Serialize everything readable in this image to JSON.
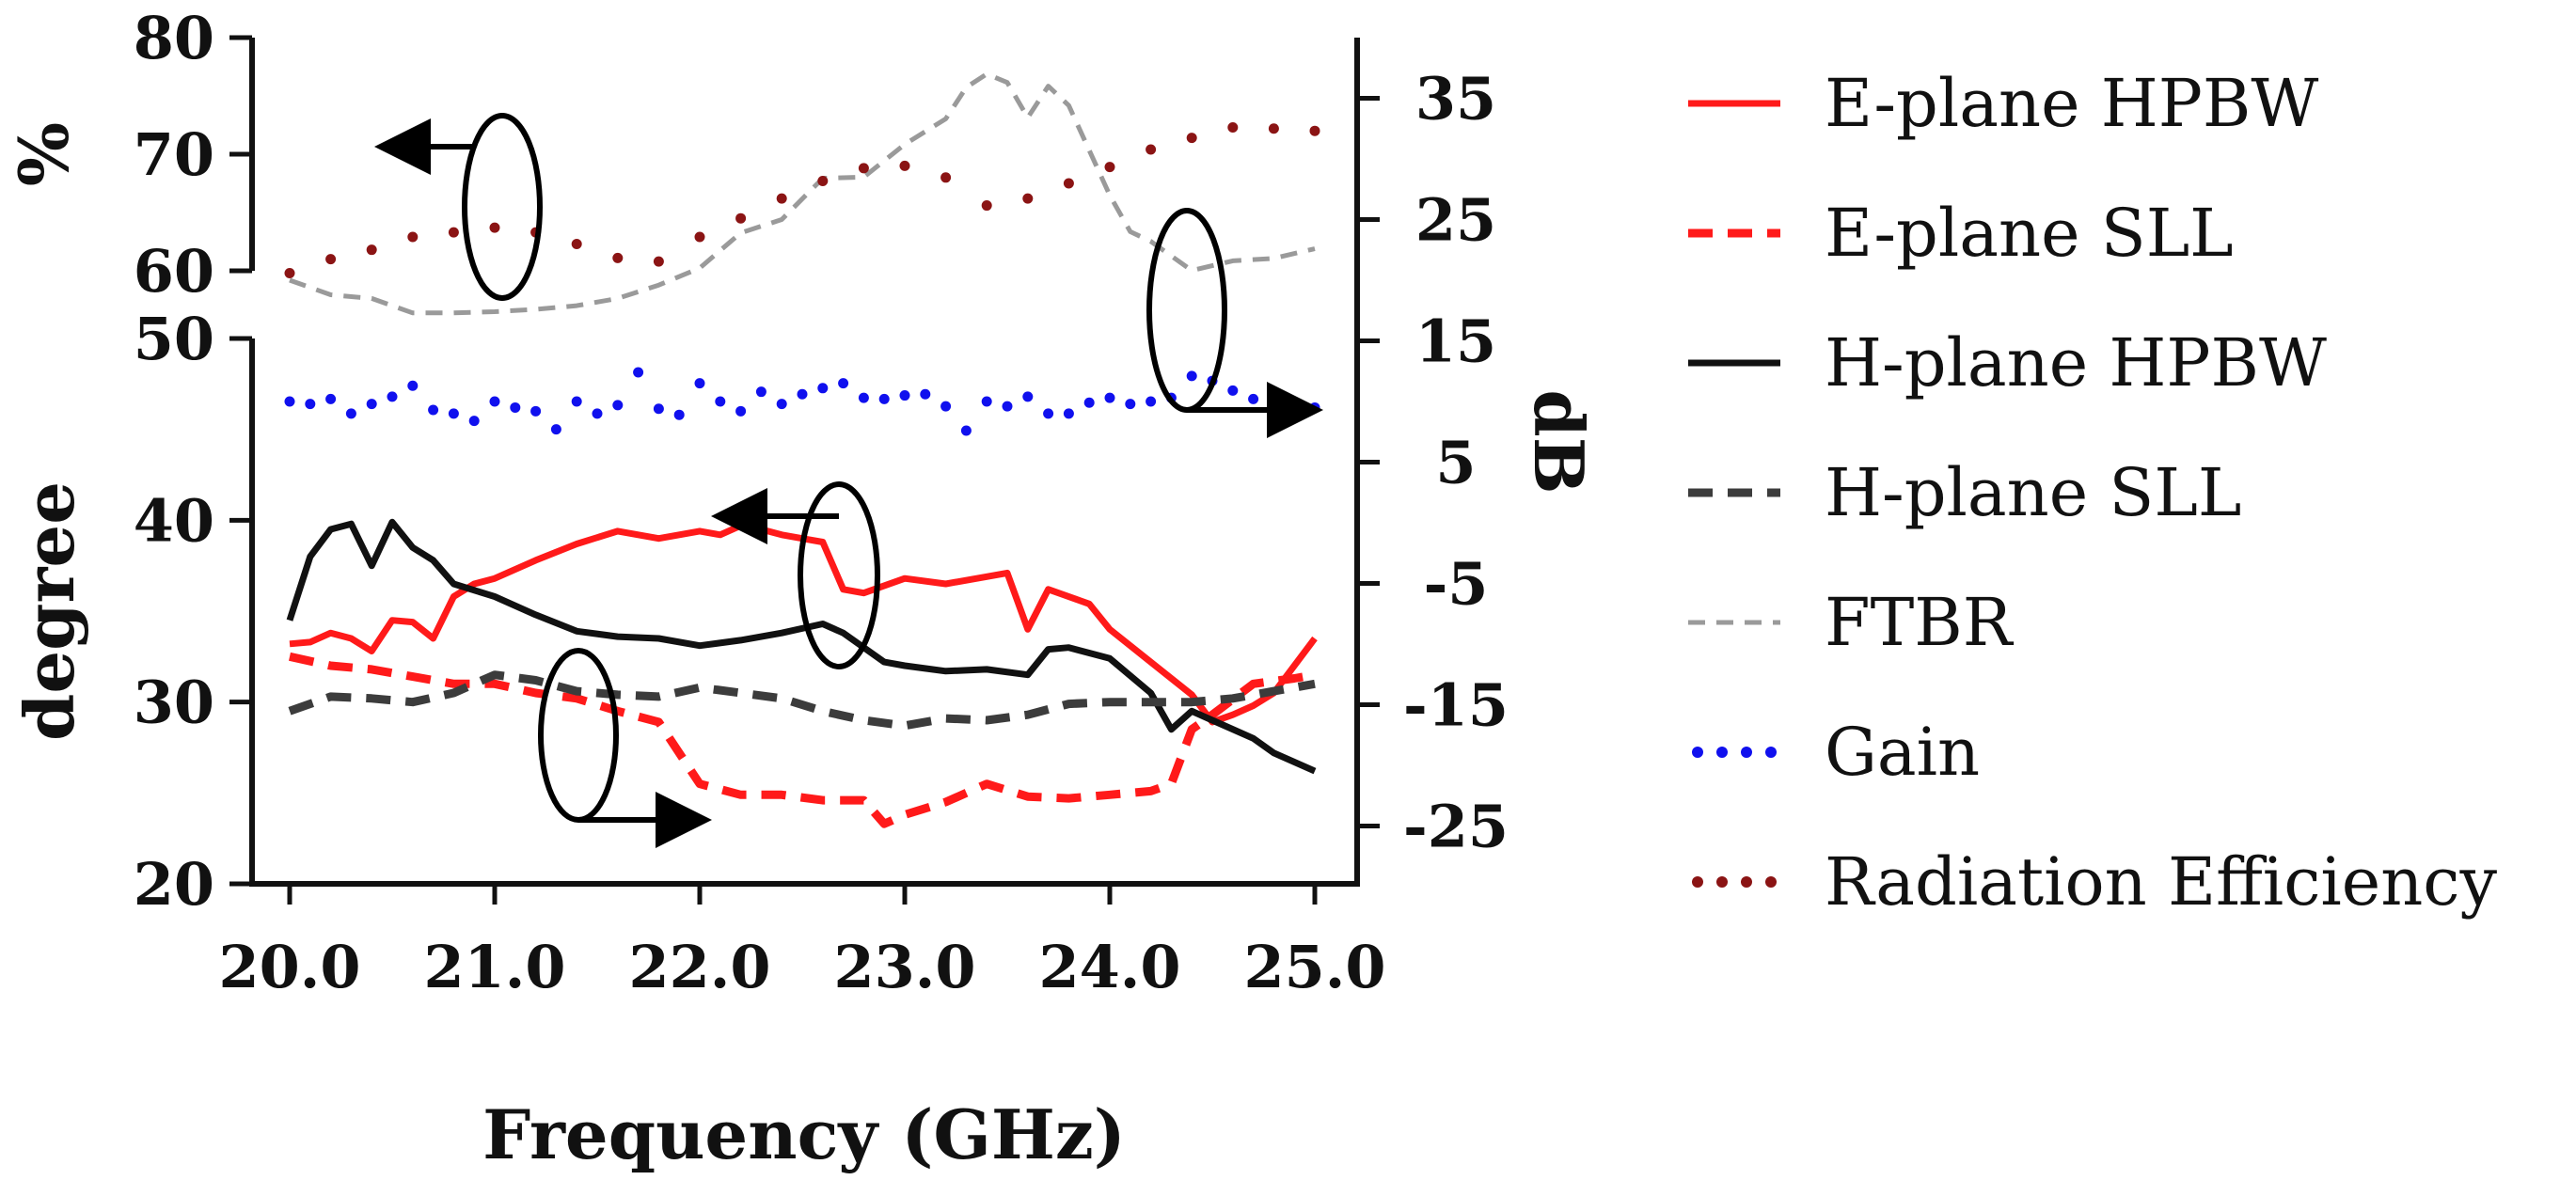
{
  "chart_data": {
    "type": "line",
    "xlabel": "Frequency (GHz)",
    "x_ticks": [
      "20.0",
      "21.0",
      "22.0",
      "23.0",
      "24.0",
      "25.0"
    ],
    "xlim": [
      20.0,
      25.0
    ],
    "left_axis_upper": {
      "label": "%",
      "ylim": [
        60,
        80
      ],
      "ticks": [
        "60",
        "70",
        "80"
      ]
    },
    "left_axis_lower": {
      "label": "degree",
      "ylim": [
        20,
        50
      ],
      "ticks": [
        "20",
        "30",
        "40",
        "50"
      ]
    },
    "right_axis": {
      "label": "dB",
      "ylim": [
        -30,
        40
      ],
      "ticks": [
        "-25",
        "-15",
        "-5",
        "5",
        "15",
        "25",
        "35"
      ]
    },
    "series": [
      {
        "name": "E-plane HPBW",
        "axis": "degree",
        "color": "#ff1a1a",
        "style": "solid",
        "x": [
          20.0,
          20.1,
          20.2,
          20.3,
          20.4,
          20.5,
          20.6,
          20.7,
          20.8,
          20.9,
          21.0,
          21.2,
          21.4,
          21.6,
          21.8,
          22.0,
          22.1,
          22.2,
          22.3,
          22.4,
          22.5,
          22.6,
          22.7,
          22.8,
          23.0,
          23.2,
          23.4,
          23.5,
          23.6,
          23.7,
          23.9,
          24.0,
          24.2,
          24.4,
          24.5,
          24.6,
          24.7,
          24.8,
          25.0
        ],
        "y": [
          33.2,
          33.3,
          33.8,
          33.5,
          32.8,
          34.5,
          34.4,
          33.5,
          35.8,
          36.5,
          36.8,
          37.8,
          38.7,
          39.4,
          39.0,
          39.4,
          39.2,
          39.7,
          39.5,
          39.2,
          39.0,
          38.8,
          36.2,
          36.0,
          36.8,
          36.5,
          36.9,
          37.1,
          34.0,
          36.2,
          35.4,
          34.0,
          32.2,
          30.4,
          28.9,
          29.3,
          29.8,
          30.5,
          33.5
        ]
      },
      {
        "name": "E-plane SLL",
        "axis": "degree",
        "color": "#ff1a1a",
        "style": "dash",
        "x": [
          20.0,
          20.2,
          20.4,
          20.6,
          20.8,
          21.0,
          21.2,
          21.4,
          21.6,
          21.8,
          22.0,
          22.2,
          22.4,
          22.6,
          22.8,
          22.9,
          23.0,
          23.2,
          23.4,
          23.6,
          23.8,
          24.0,
          24.2,
          24.3,
          24.4,
          24.5,
          24.7,
          24.9,
          25.0
        ],
        "y": [
          32.5,
          32.0,
          31.8,
          31.4,
          31.0,
          31.0,
          30.5,
          30.2,
          29.5,
          28.9,
          25.5,
          24.9,
          24.9,
          24.6,
          24.6,
          23.3,
          23.8,
          24.5,
          25.5,
          24.8,
          24.7,
          24.9,
          25.1,
          25.5,
          28.5,
          29.3,
          31.0,
          31.3,
          31.5
        ]
      },
      {
        "name": "H-plane HPBW",
        "axis": "degree",
        "color": "#111111",
        "style": "solid",
        "x": [
          20.0,
          20.1,
          20.2,
          20.3,
          20.4,
          20.5,
          20.6,
          20.7,
          20.8,
          21.0,
          21.2,
          21.4,
          21.6,
          21.8,
          22.0,
          22.2,
          22.4,
          22.6,
          22.7,
          22.9,
          23.0,
          23.2,
          23.4,
          23.6,
          23.7,
          23.8,
          24.0,
          24.2,
          24.3,
          24.4,
          24.5,
          24.7,
          24.8,
          25.0
        ],
        "y": [
          34.5,
          38.0,
          39.5,
          39.8,
          37.5,
          39.9,
          38.5,
          37.8,
          36.5,
          35.8,
          34.8,
          33.9,
          33.6,
          33.5,
          33.1,
          33.4,
          33.8,
          34.3,
          33.8,
          32.2,
          32.0,
          31.7,
          31.8,
          31.5,
          32.9,
          33.0,
          32.4,
          30.5,
          28.5,
          29.5,
          29.0,
          28.0,
          27.2,
          26.2
        ]
      },
      {
        "name": "H-plane SLL",
        "axis": "degree",
        "color": "#3c3c3c",
        "style": "dash",
        "x": [
          20.0,
          20.2,
          20.4,
          20.6,
          20.8,
          21.0,
          21.2,
          21.4,
          21.6,
          21.8,
          22.0,
          22.2,
          22.4,
          22.6,
          22.8,
          23.0,
          23.2,
          23.4,
          23.6,
          23.8,
          24.0,
          24.2,
          24.4,
          24.6,
          24.8,
          25.0
        ],
        "y": [
          29.5,
          30.3,
          30.2,
          30.0,
          30.5,
          31.5,
          31.2,
          30.6,
          30.4,
          30.3,
          30.8,
          30.5,
          30.2,
          29.5,
          29.0,
          28.7,
          29.1,
          29.0,
          29.3,
          29.9,
          30.0,
          30.0,
          30.0,
          30.2,
          30.6,
          31.0
        ]
      },
      {
        "name": "FTBR",
        "axis": "dB",
        "color": "#9a9a9a",
        "style": "dash",
        "x": [
          20.0,
          20.2,
          20.4,
          20.6,
          20.8,
          21.0,
          21.2,
          21.4,
          21.6,
          21.8,
          22.0,
          22.2,
          22.4,
          22.6,
          22.8,
          23.0,
          23.2,
          23.3,
          23.4,
          23.5,
          23.6,
          23.7,
          23.8,
          24.0,
          24.1,
          24.2,
          24.4,
          24.6,
          24.8,
          25.0
        ],
        "y": [
          20.0,
          18.8,
          18.5,
          17.3,
          17.3,
          17.4,
          17.6,
          17.9,
          18.5,
          19.6,
          21.0,
          23.9,
          25.0,
          28.4,
          28.5,
          31.2,
          33.3,
          35.9,
          37.0,
          36.3,
          33.4,
          36.0,
          34.4,
          27.0,
          24.0,
          23.2,
          20.8,
          21.6,
          21.8,
          22.6
        ]
      },
      {
        "name": "Gain",
        "axis": "dB",
        "color": "#1010ee",
        "style": "dot",
        "x": [
          20.0,
          20.1,
          20.2,
          20.3,
          20.4,
          20.5,
          20.6,
          20.7,
          20.8,
          20.9,
          21.0,
          21.1,
          21.2,
          21.3,
          21.4,
          21.5,
          21.6,
          21.7,
          21.8,
          21.9,
          22.0,
          22.1,
          22.2,
          22.3,
          22.4,
          22.5,
          22.6,
          22.7,
          22.8,
          22.9,
          23.0,
          23.1,
          23.2,
          23.3,
          23.4,
          23.5,
          23.6,
          23.7,
          23.8,
          23.9,
          24.0,
          24.1,
          24.2,
          24.3,
          24.4,
          24.5,
          24.6,
          24.7,
          24.8,
          24.9,
          25.0
        ],
        "y": [
          10.0,
          9.8,
          10.2,
          9.0,
          9.8,
          10.4,
          11.3,
          9.3,
          9.0,
          8.4,
          10.0,
          9.5,
          9.2,
          7.7,
          10.0,
          9.0,
          9.7,
          12.4,
          9.4,
          8.9,
          11.5,
          10.0,
          9.2,
          10.8,
          9.8,
          10.6,
          11.1,
          11.5,
          10.3,
          10.2,
          10.5,
          10.6,
          9.6,
          7.6,
          10.0,
          9.6,
          10.4,
          9.0,
          9.0,
          9.9,
          10.3,
          9.8,
          10.0,
          10.3,
          12.1,
          11.7,
          10.9,
          10.2,
          9.8,
          9.8,
          9.5
        ]
      },
      {
        "name": "Radiation Efficiency",
        "axis": "%",
        "color": "#8b1414",
        "style": "dot",
        "x": [
          20.0,
          20.2,
          20.4,
          20.6,
          20.8,
          21.0,
          21.2,
          21.4,
          21.6,
          21.8,
          22.0,
          22.2,
          22.4,
          22.6,
          22.8,
          23.0,
          23.2,
          23.4,
          23.6,
          23.8,
          24.0,
          24.2,
          24.4,
          24.6,
          24.8,
          25.0
        ],
        "y": [
          59.8,
          61.0,
          61.8,
          62.9,
          63.3,
          63.7,
          63.3,
          62.3,
          61.1,
          60.8,
          62.9,
          64.5,
          66.2,
          67.7,
          68.8,
          69.0,
          68.0,
          65.6,
          66.2,
          67.5,
          68.9,
          70.4,
          71.4,
          72.3,
          72.2,
          72.0
        ]
      }
    ],
    "annotations": [
      {
        "type": "ellipse-arrow",
        "direction": "left",
        "points_to": "left axis (%)"
      },
      {
        "type": "ellipse-arrow",
        "direction": "right",
        "points_to": "right axis (dB)"
      },
      {
        "type": "ellipse-arrow",
        "direction": "left",
        "points_to": "left axis (degree)"
      },
      {
        "type": "ellipse-arrow",
        "direction": "right",
        "points_to": "right axis (dB)"
      }
    ],
    "legend_position": "right"
  }
}
